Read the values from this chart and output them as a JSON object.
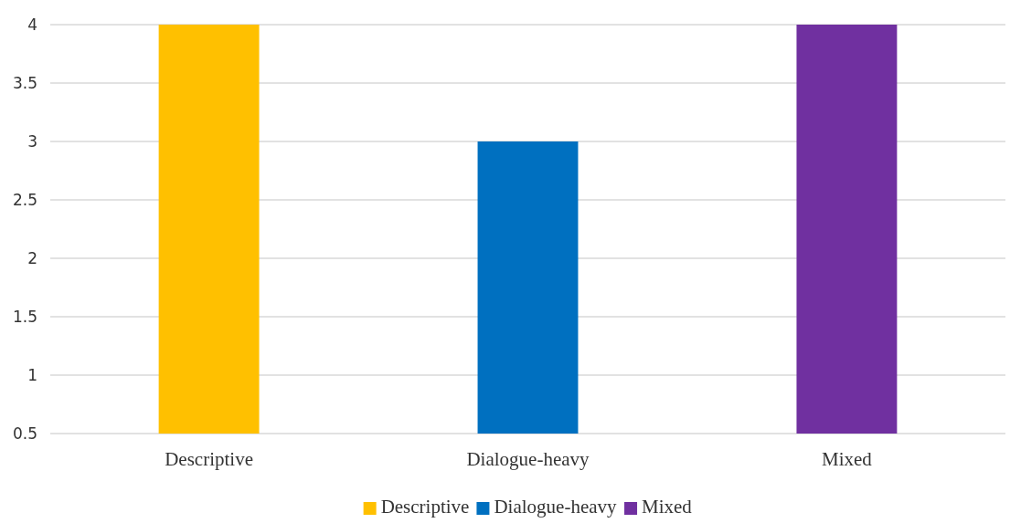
{
  "chart_data": {
    "type": "bar",
    "categories": [
      "Descriptive",
      "Dialogue-heavy",
      "Mixed"
    ],
    "series": [
      {
        "name": "Descriptive",
        "color": "#ffc000",
        "values": [
          4,
          null,
          null
        ]
      },
      {
        "name": "Dialogue-heavy",
        "color": "#0070c0",
        "values": [
          null,
          3,
          null
        ]
      },
      {
        "name": "Mixed",
        "color": "#7030a0",
        "values": [
          null,
          null,
          4
        ]
      }
    ],
    "ylim": [
      0.5,
      4
    ],
    "yticks": [
      0.5,
      1,
      1.5,
      2,
      2.5,
      3,
      3.5,
      4
    ],
    "grid": "y",
    "legend": "bottom"
  }
}
